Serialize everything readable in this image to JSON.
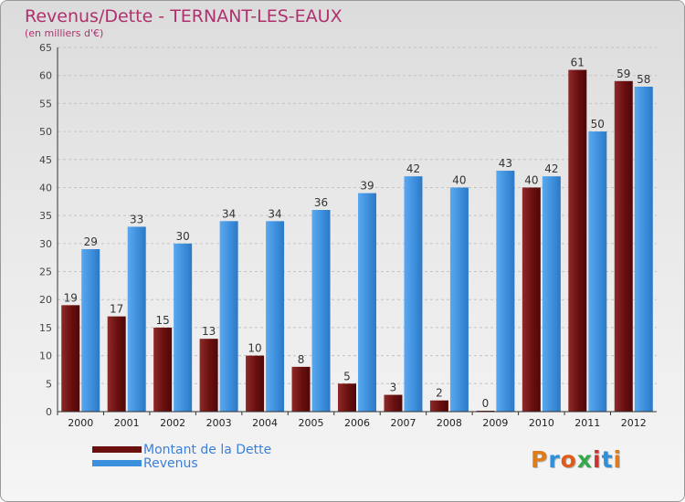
{
  "title": "Revenus/Dette - TERNANT-LES-EAUX",
  "subtitle": "(en milliers d'€)",
  "logo": "Proxiti",
  "colors": {
    "debt": "#7a1414",
    "revenue": "#3c8fdc",
    "title": "#b0306e",
    "legend_text": "#3a7fd9"
  },
  "legend": [
    {
      "label": "Montant de la Dette",
      "color": "#6b0f0f"
    },
    {
      "label": "Revenus",
      "color": "#3c8fdc"
    }
  ],
  "chart_data": {
    "type": "bar",
    "categories": [
      "2000",
      "2001",
      "2002",
      "2003",
      "2004",
      "2005",
      "2006",
      "2007",
      "2008",
      "2009",
      "2010",
      "2011",
      "2012"
    ],
    "series": [
      {
        "name": "Montant de la Dette",
        "values": [
          19,
          17,
          15,
          13,
          10,
          8,
          5,
          3,
          2,
          0,
          40,
          61,
          59
        ]
      },
      {
        "name": "Revenus",
        "values": [
          29,
          33,
          30,
          34,
          34,
          36,
          39,
          42,
          40,
          43,
          42,
          50,
          58
        ]
      }
    ],
    "ylim": [
      0,
      65
    ],
    "yticks": [
      0,
      5,
      10,
      15,
      20,
      25,
      30,
      35,
      40,
      45,
      50,
      55,
      60,
      65
    ],
    "grid": true,
    "legend_position": "bottom-left"
  }
}
